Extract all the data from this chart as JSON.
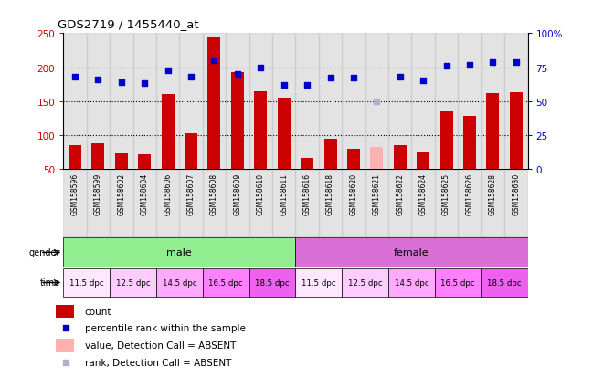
{
  "title": "GDS2719 / 1455440_at",
  "samples": [
    "GSM158596",
    "GSM158599",
    "GSM158602",
    "GSM158604",
    "GSM158606",
    "GSM158607",
    "GSM158608",
    "GSM158609",
    "GSM158610",
    "GSM158611",
    "GSM158616",
    "GSM158618",
    "GSM158620",
    "GSM158621",
    "GSM158622",
    "GSM158624",
    "GSM158625",
    "GSM158626",
    "GSM158628",
    "GSM158630"
  ],
  "counts": [
    85,
    88,
    73,
    72,
    160,
    103,
    243,
    193,
    165,
    155,
    67,
    95,
    80,
    82,
    85,
    75,
    135,
    128,
    162,
    163
  ],
  "percentiles": [
    68,
    66,
    64,
    63,
    73,
    68,
    80,
    70,
    75,
    62,
    62,
    67,
    67,
    50,
    68,
    65,
    76,
    77,
    79,
    79
  ],
  "absent_count": [
    false,
    false,
    false,
    false,
    false,
    false,
    false,
    false,
    false,
    false,
    false,
    false,
    false,
    true,
    false,
    false,
    false,
    false,
    false,
    false
  ],
  "absent_rank": [
    false,
    false,
    false,
    false,
    false,
    false,
    false,
    false,
    false,
    false,
    false,
    false,
    false,
    true,
    false,
    false,
    false,
    false,
    false,
    false
  ],
  "ylim_left": [
    50,
    250
  ],
  "ylim_right": [
    0,
    100
  ],
  "yticks_left": [
    50,
    100,
    150,
    200,
    250
  ],
  "yticks_right": [
    0,
    25,
    50,
    75,
    100
  ],
  "ytick_labels_right": [
    "0",
    "25",
    "50",
    "75",
    "100%"
  ],
  "bar_color": "#cc0000",
  "absent_bar_color": "#ffb0b0",
  "square_color": "#0000cc",
  "absent_square_color": "#b0b0cc",
  "bg_color": "#ffffff",
  "tick_label_color_left": "#cc0000",
  "tick_label_color_right": "#0000cc",
  "gender_male_color": "#90ee90",
  "gender_female_color": "#da70d6",
  "sample_bg": "#c8c8c8",
  "time_colors": [
    "#ffe8ff",
    "#ffccff",
    "#ffaaff",
    "#ff80ff",
    "#ee60ee",
    "#ffe8ff",
    "#ffccff",
    "#ffaaff",
    "#ff80ff",
    "#ee60ee"
  ],
  "dotted_line_ticks": [
    100,
    150,
    200
  ]
}
